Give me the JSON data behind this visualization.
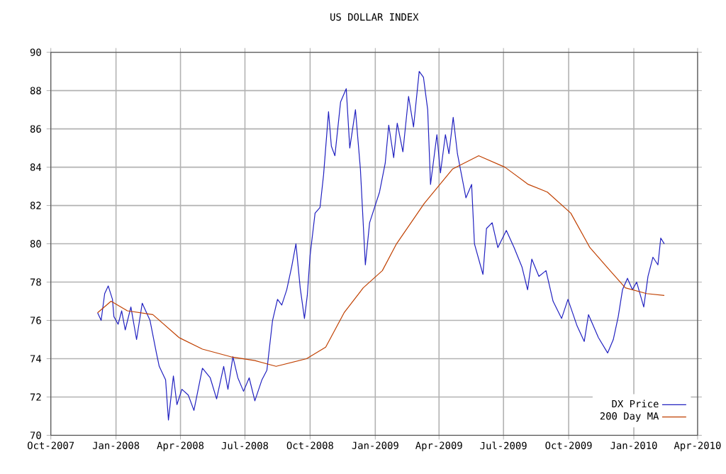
{
  "chart_data": {
    "type": "line",
    "title": "US DOLLAR INDEX",
    "xlim": [
      "2007-10-01",
      "2010-04-01"
    ],
    "xticks": [
      {
        "value": "2007-10-01",
        "label": "Oct-2007"
      },
      {
        "value": "2008-01-01",
        "label": "Jan-2008"
      },
      {
        "value": "2008-04-01",
        "label": "Apr-2008"
      },
      {
        "value": "2008-07-01",
        "label": "Jul-2008"
      },
      {
        "value": "2008-10-01",
        "label": "Oct-2008"
      },
      {
        "value": "2009-01-01",
        "label": "Jan-2009"
      },
      {
        "value": "2009-04-01",
        "label": "Apr-2009"
      },
      {
        "value": "2009-07-01",
        "label": "Jul-2009"
      },
      {
        "value": "2009-10-01",
        "label": "Oct-2009"
      },
      {
        "value": "2010-01-01",
        "label": "Jan-2010"
      },
      {
        "value": "2010-04-01",
        "label": "Apr-2010"
      }
    ],
    "ylim": [
      70,
      90
    ],
    "yticks": [
      70,
      72,
      74,
      76,
      78,
      80,
      82,
      84,
      86,
      88,
      90
    ],
    "grid": true,
    "legend": "bottom right",
    "series": [
      {
        "name": "DX Price",
        "color": "#2020c0",
        "x": [
          "2007-12-06",
          "2007-12-11",
          "2007-12-16",
          "2007-12-21",
          "2007-12-27",
          "2007-12-29",
          "2008-01-04",
          "2008-01-09",
          "2008-01-14",
          "2008-01-22",
          "2008-01-30",
          "2008-02-07",
          "2008-02-18",
          "2008-02-27",
          "2008-03-02",
          "2008-03-11",
          "2008-03-15",
          "2008-03-22",
          "2008-03-27",
          "2008-04-03",
          "2008-04-12",
          "2008-04-20",
          "2008-05-02",
          "2008-05-13",
          "2008-05-22",
          "2008-06-01",
          "2008-06-07",
          "2008-06-14",
          "2008-06-21",
          "2008-06-29",
          "2008-07-07",
          "2008-07-15",
          "2008-07-25",
          "2008-08-01",
          "2008-08-09",
          "2008-08-16",
          "2008-08-22",
          "2008-08-29",
          "2008-09-05",
          "2008-09-11",
          "2008-09-17",
          "2008-09-23",
          "2008-09-27",
          "2008-10-01",
          "2008-10-08",
          "2008-10-15",
          "2008-10-20",
          "2008-10-27",
          "2008-10-31",
          "2008-11-05",
          "2008-11-13",
          "2008-11-21",
          "2008-11-26",
          "2008-12-04",
          "2008-12-11",
          "2008-12-18",
          "2008-12-24",
          "2009-01-07",
          "2009-01-15",
          "2009-01-20",
          "2009-01-27",
          "2009-02-01",
          "2009-02-09",
          "2009-02-17",
          "2009-02-24",
          "2009-03-04",
          "2009-03-10",
          "2009-03-16",
          "2009-03-20",
          "2009-03-29",
          "2009-04-03",
          "2009-04-10",
          "2009-04-15",
          "2009-04-21",
          "2009-04-27",
          "2009-05-09",
          "2009-05-17",
          "2009-05-21",
          "2009-06-02",
          "2009-06-07",
          "2009-06-15",
          "2009-06-23",
          "2009-07-05",
          "2009-07-16",
          "2009-07-27",
          "2009-08-04",
          "2009-08-10",
          "2009-08-20",
          "2009-08-30",
          "2009-09-09",
          "2009-09-21",
          "2009-09-30",
          "2009-10-13",
          "2009-10-23",
          "2009-10-29",
          "2009-11-12",
          "2009-11-25",
          "2009-12-03",
          "2009-12-10",
          "2009-12-16",
          "2009-12-23",
          "2009-12-30",
          "2010-01-05",
          "2010-01-15",
          "2010-01-21",
          "2010-01-28",
          "2010-02-04",
          "2010-02-08",
          "2010-02-13"
        ],
        "values": [
          76.4,
          76.0,
          77.4,
          77.8,
          77.1,
          76.2,
          75.8,
          76.5,
          75.5,
          76.7,
          75.0,
          76.9,
          76.0,
          74.3,
          73.6,
          72.9,
          70.8,
          73.1,
          71.6,
          72.4,
          72.1,
          71.3,
          73.5,
          73.0,
          71.9,
          73.6,
          72.4,
          74.1,
          73.0,
          72.3,
          73.0,
          71.8,
          72.9,
          73.4,
          76.0,
          77.1,
          76.8,
          77.6,
          78.8,
          80.0,
          77.7,
          76.1,
          77.3,
          79.4,
          81.6,
          81.9,
          83.6,
          86.9,
          85.1,
          84.6,
          87.4,
          88.1,
          85.0,
          87.0,
          83.9,
          78.9,
          81.1,
          82.7,
          84.2,
          86.2,
          84.5,
          86.3,
          84.8,
          87.7,
          86.1,
          89.0,
          88.7,
          87.0,
          83.1,
          85.7,
          83.7,
          85.7,
          84.7,
          86.6,
          84.7,
          82.4,
          83.1,
          80.0,
          78.4,
          80.8,
          81.1,
          79.8,
          80.7,
          79.8,
          78.8,
          77.6,
          79.2,
          78.3,
          78.6,
          77.0,
          76.1,
          77.1,
          75.7,
          74.9,
          76.3,
          75.1,
          74.3,
          75.0,
          76.2,
          77.6,
          78.2,
          77.6,
          78.0,
          76.7,
          78.3,
          79.3,
          78.9,
          80.3,
          80.0
        ]
      },
      {
        "name": "200 Day MA",
        "color": "#c04000",
        "x": [
          "2007-12-06",
          "2007-12-25",
          "2008-01-17",
          "2008-02-22",
          "2008-03-30",
          "2008-05-02",
          "2008-06-11",
          "2008-07-15",
          "2008-08-14",
          "2008-09-26",
          "2008-10-23",
          "2008-11-18",
          "2008-12-15",
          "2009-01-11",
          "2009-01-31",
          "2009-03-11",
          "2009-04-20",
          "2009-05-27",
          "2009-07-03",
          "2009-08-05",
          "2009-09-01",
          "2009-10-04",
          "2009-10-31",
          "2009-11-26",
          "2009-12-20",
          "2010-01-19",
          "2010-02-13"
        ],
        "values": [
          76.4,
          77.0,
          76.5,
          76.3,
          75.1,
          74.5,
          74.1,
          73.9,
          73.6,
          74.0,
          74.6,
          76.4,
          77.7,
          78.6,
          80.0,
          82.1,
          83.9,
          84.6,
          84.0,
          83.1,
          82.7,
          81.6,
          79.8,
          78.7,
          77.7,
          77.4,
          77.3
        ]
      }
    ]
  }
}
